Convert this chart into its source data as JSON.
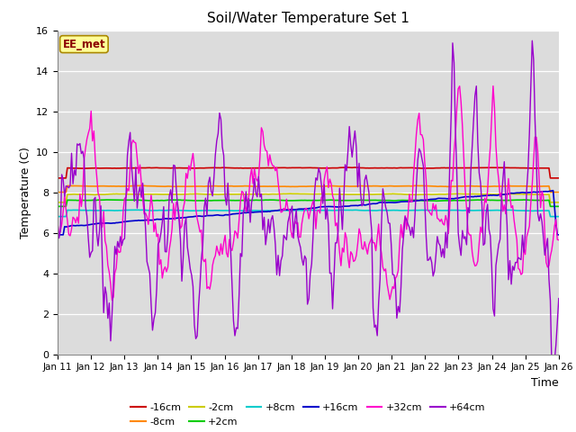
{
  "title": "Soil/Water Temperature Set 1",
  "xlabel": "Time",
  "ylabel": "Temperature (C)",
  "ylim": [
    0,
    16
  ],
  "xlim": [
    0,
    15
  ],
  "background_color": "#dcdcdc",
  "annotation_text": "EE_met",
  "annotation_bg": "#ffff99",
  "annotation_border": "#aa8800",
  "series": {
    "-16cm": {
      "color": "#cc0000",
      "linewidth": 1.2
    },
    "-8cm": {
      "color": "#ff8800",
      "linewidth": 1.2
    },
    "-2cm": {
      "color": "#cccc00",
      "linewidth": 1.2
    },
    "+2cm": {
      "color": "#00cc00",
      "linewidth": 1.2
    },
    "+8cm": {
      "color": "#00cccc",
      "linewidth": 1.2
    },
    "+16cm": {
      "color": "#0000cc",
      "linewidth": 1.2
    },
    "+32cm": {
      "color": "#ff00cc",
      "linewidth": 1.0
    },
    "+64cm": {
      "color": "#9900cc",
      "linewidth": 1.0
    }
  },
  "xtick_labels": [
    "Jan 11",
    "Jan 12",
    "Jan 13",
    "Jan 14",
    "Jan 15",
    "Jan 16",
    "Jan 17",
    "Jan 18",
    "Jan 19",
    "Jan 20",
    "Jan 21",
    "Jan 22",
    "Jan 23",
    "Jan 24",
    "Jan 25",
    "Jan 26"
  ],
  "ytick_labels": [
    "0",
    "2",
    "4",
    "6",
    "8",
    "10",
    "12",
    "14",
    "16"
  ]
}
